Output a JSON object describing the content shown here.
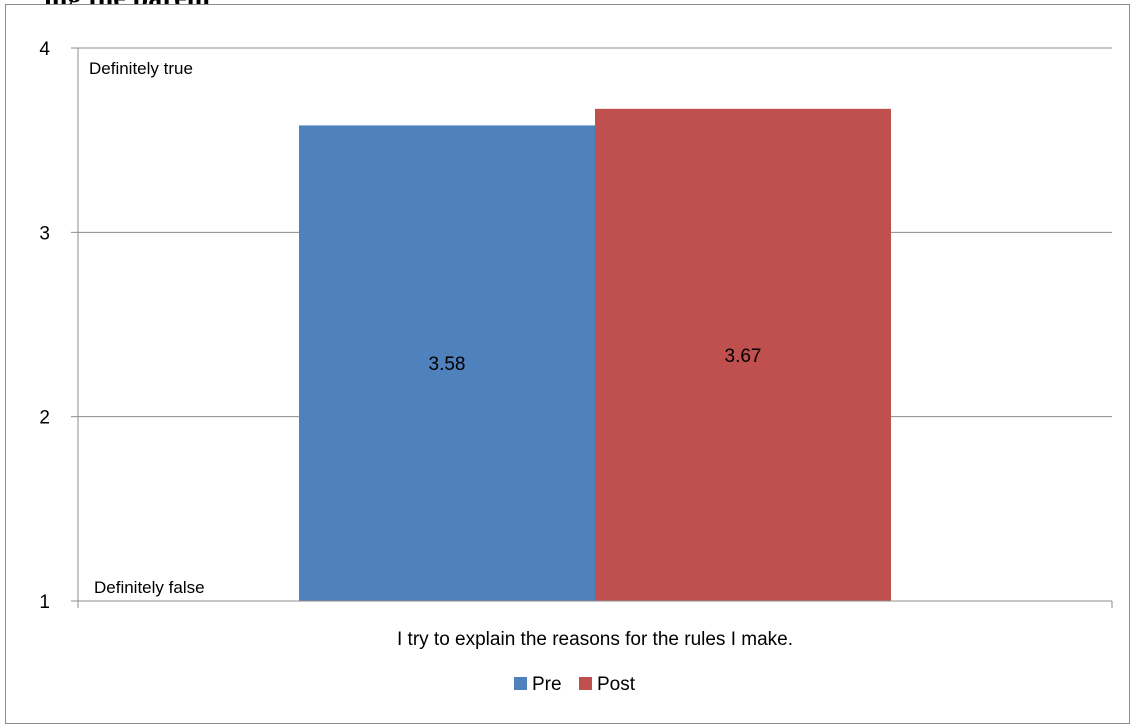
{
  "header_fragment": "ing the parent",
  "chart_data": {
    "type": "bar",
    "categories": [
      "I try to explain the reasons for the rules I make."
    ],
    "series": [
      {
        "name": "Pre",
        "values": [
          3.58
        ],
        "color": "#4f81bd",
        "data_label": "3.58"
      },
      {
        "name": "Post",
        "values": [
          3.67
        ],
        "color": "#c0504d",
        "data_label": "3.67"
      }
    ],
    "ylim": [
      1,
      4
    ],
    "yticks": [
      1,
      2,
      3,
      4
    ],
    "ytick_labels": [
      "1",
      "2",
      "3",
      "4"
    ],
    "annotations": {
      "top": "Definitely true",
      "bottom": "Definitely false"
    },
    "xlabel": "",
    "ylabel": "",
    "grid": true,
    "legend_position": "bottom"
  }
}
